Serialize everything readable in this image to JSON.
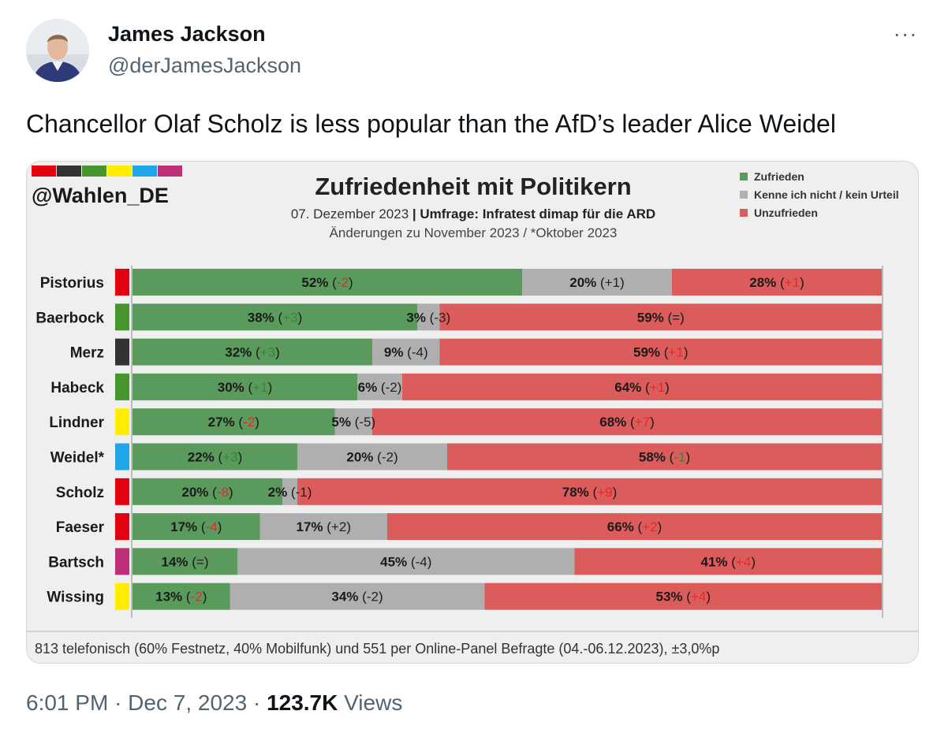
{
  "author": {
    "name": "James Jackson",
    "handle": "@derJamesJackson",
    "avatar_icon": "person-avatar-icon",
    "more_icon": "more-horizontal-icon",
    "more_label": "···"
  },
  "tweet": {
    "text": "Chancellor Olaf Scholz is less popular than the AfD’s leader Alice Weidel"
  },
  "meta": {
    "time": "6:01 PM",
    "date": "Dec 7, 2023",
    "separator": "·",
    "views_count": "123.7K",
    "views_label": "Views"
  },
  "chart_data": {
    "type": "bar",
    "stacked": true,
    "orientation": "horizontal",
    "brand": "@Wahlen_DE",
    "brand_colors": [
      "#e3000f",
      "#333333",
      "#46962b",
      "#ffed00",
      "#1fa6e8",
      "#be3075"
    ],
    "title": "Zufriedenheit mit Politikern",
    "subtitle_date": "07. Dezember 2023",
    "subtitle_sep": "|",
    "subtitle_source": "Umfrage: Infratest dimap für die ARD",
    "subtitle_changes": "Änderungen zu November 2023 / *Oktober 2023",
    "legend_position": "top-right",
    "colors": {
      "Zufrieden": "#5b9a5d",
      "Kenne ich nicht / kein Urteil": "#afafaf",
      "Unzufrieden": "#dc5b5b"
    },
    "change_colors": {
      "positive_good": "#2e8b35",
      "negative_bad": "#e22b2b",
      "neutral": "#222222"
    },
    "legend": [
      "Zufrieden",
      "Kenne ich nicht / kein Urteil",
      "Unzufrieden"
    ],
    "categories": [
      "Pistorius",
      "Baerbock",
      "Merz",
      "Habeck",
      "Lindner",
      "Weidel*",
      "Scholz",
      "Faeser",
      "Bartsch",
      "Wissing"
    ],
    "party_colors": [
      "#e3000f",
      "#46962b",
      "#333333",
      "#46962b",
      "#ffed00",
      "#1fa6e8",
      "#e3000f",
      "#e3000f",
      "#be3075",
      "#ffed00"
    ],
    "series": [
      {
        "name": "Zufrieden",
        "values": [
          52,
          38,
          32,
          30,
          27,
          22,
          20,
          17,
          14,
          13
        ],
        "changes": [
          "-2",
          "+3",
          "+3",
          "+1",
          "-2",
          "+3",
          "-8",
          "-4",
          "=",
          "-2"
        ],
        "change_tones": [
          "bad",
          "good",
          "good",
          "good",
          "bad",
          "good",
          "bad",
          "bad",
          "neutral",
          "bad"
        ]
      },
      {
        "name": "Kenne ich nicht / kein Urteil",
        "values": [
          20,
          3,
          9,
          6,
          5,
          20,
          2,
          17,
          45,
          34
        ],
        "changes": [
          "+1",
          "-3",
          "-4",
          "-2",
          "-5",
          "-2",
          "-1",
          "+2",
          "-4",
          "-2"
        ],
        "change_tones": [
          "neutral",
          "neutral",
          "neutral",
          "neutral",
          "neutral",
          "neutral",
          "neutral",
          "neutral",
          "neutral",
          "neutral"
        ]
      },
      {
        "name": "Unzufrieden",
        "values": [
          28,
          59,
          59,
          64,
          68,
          58,
          78,
          66,
          41,
          53
        ],
        "changes": [
          "+1",
          "=",
          "+1",
          "+1",
          "+7",
          "-1",
          "+9",
          "+2",
          "+4",
          "+4"
        ],
        "change_tones": [
          "bad",
          "neutral",
          "bad",
          "bad",
          "bad",
          "good",
          "bad",
          "bad",
          "bad",
          "bad"
        ]
      }
    ],
    "xlim": [
      0,
      100
    ],
    "footnote": "813 telefonisch (60% Festnetz, 40% Mobilfunk) und 551 per Online-Panel Befragte (04.-06.12.2023), ±3,0%p"
  }
}
